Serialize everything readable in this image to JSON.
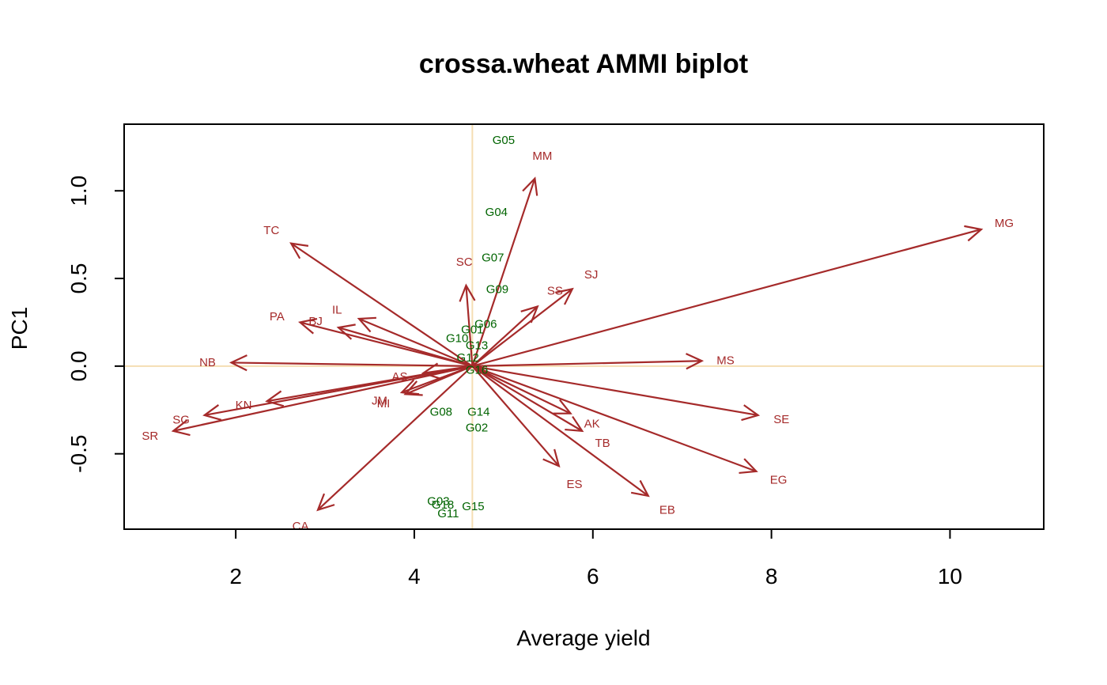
{
  "chart_data": {
    "type": "scatter",
    "title": "crossa.wheat AMMI biplot",
    "xlabel": "Average yield",
    "ylabel": "PC1",
    "xlim": [
      0.75,
      11.05
    ],
    "ylim": [
      -0.93,
      1.38
    ],
    "x_ticks": [
      2,
      4,
      6,
      8,
      10
    ],
    "y_ticks": [
      -0.5,
      0.0,
      0.5,
      1.0
    ],
    "x_tick_labels": [
      "2",
      "4",
      "6",
      "8",
      "10"
    ],
    "y_tick_labels": [
      "-0.5",
      "0.0",
      "0.5",
      "1.0"
    ],
    "grid": false,
    "reference_lines": {
      "x": 4.65,
      "y": 0.0,
      "color": "#f5deb3"
    },
    "colors": {
      "environments": "#a52a2a",
      "genotypes": "#006400",
      "frame": "#000000"
    },
    "arrow_origin": {
      "x": 4.65,
      "y": 0.0
    },
    "environments": [
      {
        "name": "MG",
        "x": 10.35,
        "y": 0.78
      },
      {
        "name": "MM",
        "x": 5.35,
        "y": 1.07
      },
      {
        "name": "TC",
        "x": 2.62,
        "y": 0.7
      },
      {
        "name": "SC",
        "x": 4.58,
        "y": 0.46
      },
      {
        "name": "SJ",
        "x": 5.77,
        "y": 0.44
      },
      {
        "name": "SS",
        "x": 5.38,
        "y": 0.34
      },
      {
        "name": "IL",
        "x": 3.38,
        "y": 0.27
      },
      {
        "name": "PA",
        "x": 2.72,
        "y": 0.25
      },
      {
        "name": "BJ",
        "x": 3.15,
        "y": 0.22
      },
      {
        "name": "NB",
        "x": 1.95,
        "y": 0.02
      },
      {
        "name": "MS",
        "x": 7.22,
        "y": 0.03
      },
      {
        "name": "AS",
        "x": 4.1,
        "y": -0.04
      },
      {
        "name": "JM",
        "x": 3.86,
        "y": -0.15
      },
      {
        "name": "MI",
        "x": 3.9,
        "y": -0.16
      },
      {
        "name": "KN",
        "x": 2.35,
        "y": -0.2
      },
      {
        "name": "SG",
        "x": 1.65,
        "y": -0.28
      },
      {
        "name": "SR",
        "x": 1.3,
        "y": -0.37
      },
      {
        "name": "AK",
        "x": 5.75,
        "y": -0.27
      },
      {
        "name": "TB",
        "x": 5.88,
        "y": -0.37
      },
      {
        "name": "SE",
        "x": 7.85,
        "y": -0.28
      },
      {
        "name": "ES",
        "x": 5.62,
        "y": -0.57
      },
      {
        "name": "EG",
        "x": 7.83,
        "y": -0.6
      },
      {
        "name": "EB",
        "x": 6.62,
        "y": -0.74
      },
      {
        "name": "CA",
        "x": 2.92,
        "y": -0.82
      }
    ],
    "genotypes": [
      {
        "name": "G05",
        "x": 5.0,
        "y": 1.29
      },
      {
        "name": "G04",
        "x": 4.92,
        "y": 0.88
      },
      {
        "name": "G07",
        "x": 4.88,
        "y": 0.62
      },
      {
        "name": "G09",
        "x": 4.93,
        "y": 0.44
      },
      {
        "name": "G06",
        "x": 4.8,
        "y": 0.24
      },
      {
        "name": "G01",
        "x": 4.65,
        "y": 0.21
      },
      {
        "name": "G10",
        "x": 4.48,
        "y": 0.16
      },
      {
        "name": "G13",
        "x": 4.7,
        "y": 0.12
      },
      {
        "name": "G12",
        "x": 4.6,
        "y": 0.05
      },
      {
        "name": "G16",
        "x": 4.7,
        "y": -0.02
      },
      {
        "name": "G08",
        "x": 4.3,
        "y": -0.26
      },
      {
        "name": "G14",
        "x": 4.72,
        "y": -0.26
      },
      {
        "name": "G02",
        "x": 4.7,
        "y": -0.35
      },
      {
        "name": "G03",
        "x": 4.27,
        "y": -0.77
      },
      {
        "name": "G18",
        "x": 4.32,
        "y": -0.79
      },
      {
        "name": "G15",
        "x": 4.66,
        "y": -0.8
      },
      {
        "name": "G11",
        "x": 4.38,
        "y": -0.84
      }
    ]
  }
}
